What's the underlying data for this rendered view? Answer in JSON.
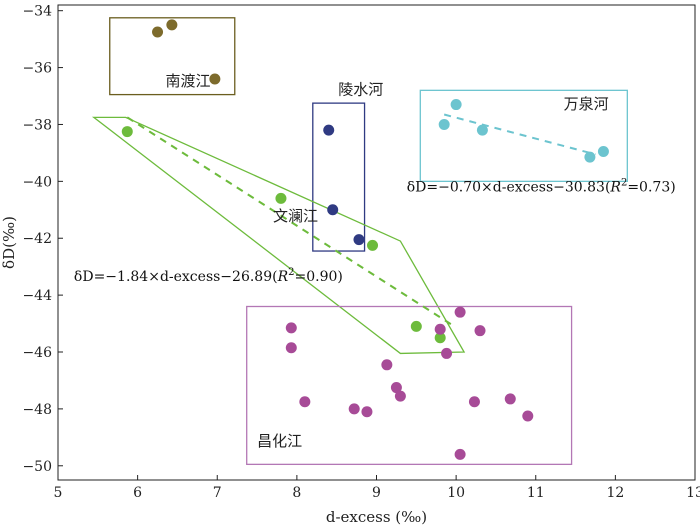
{
  "chart_data": {
    "type": "scatter",
    "xlabel": "d-excess (‰)",
    "ylabel": "δD(‰)",
    "xlim": [
      5,
      13
    ],
    "ylim": [
      -50.5,
      -33.8
    ],
    "x_ticks": [
      5,
      6,
      7,
      8,
      9,
      10,
      11,
      12,
      13
    ],
    "y_ticks": [
      -50,
      -48,
      -46,
      -44,
      -42,
      -40,
      -38,
      -36,
      -34
    ],
    "grid": false,
    "groups": [
      {
        "name": "南渡江",
        "color": "#7d6b2c",
        "box_color": "#6b5e1f",
        "points": [
          [
            6.25,
            -34.75
          ],
          [
            6.43,
            -34.5
          ],
          [
            6.97,
            -36.4
          ]
        ],
        "box": {
          "x": [
            5.65,
            7.22
          ],
          "y": [
            -36.95,
            -34.25
          ]
        },
        "label_at": [
          6.35,
          -36.65
        ]
      },
      {
        "name": "陵水河",
        "color": "#2f3a82",
        "box_color": "#2f3a82",
        "points": [
          [
            8.4,
            -38.2
          ],
          [
            8.45,
            -41.0
          ],
          [
            8.78,
            -42.05
          ]
        ],
        "box": {
          "x": [
            8.2,
            8.85
          ],
          "y": [
            -42.45,
            -37.25
          ]
        },
        "label_at": [
          8.52,
          -36.95
        ]
      },
      {
        "name": "万泉河",
        "color": "#6cc4cf",
        "box_color": "#6cc4cf",
        "points": [
          [
            10.0,
            -37.3
          ],
          [
            9.85,
            -38.0
          ],
          [
            10.33,
            -38.2
          ],
          [
            11.68,
            -39.15
          ],
          [
            11.85,
            -38.95
          ]
        ],
        "box": {
          "x": [
            9.55,
            12.15
          ],
          "y": [
            -40.0,
            -36.8
          ]
        },
        "label_at": [
          11.35,
          -37.45
        ],
        "trend": [
          [
            9.85,
            -37.65
          ],
          [
            11.75,
            -39.05
          ]
        ],
        "equation": {
          "prefix": "δD=−0.70×d-excess−30.83(",
          "r": "R",
          "sup": "2",
          "suffix": "=0.73)"
        },
        "equation_at": [
          9.38,
          -40.35
        ]
      },
      {
        "name": "文澜江",
        "color": "#6dbb3c",
        "box_color": "#6dbb3c",
        "points": [
          [
            5.87,
            -38.25
          ],
          [
            7.8,
            -40.6
          ],
          [
            8.95,
            -42.25
          ],
          [
            9.5,
            -45.1
          ],
          [
            9.8,
            -45.5
          ]
        ],
        "hull": [
          [
            5.45,
            -37.75
          ],
          [
            5.85,
            -37.75
          ],
          [
            9.3,
            -42.1
          ],
          [
            10.1,
            -46.0
          ],
          [
            9.3,
            -46.05
          ]
        ],
        "label_at": [
          7.7,
          -41.4
        ],
        "trend": [
          [
            5.87,
            -37.75
          ],
          [
            9.95,
            -45.05
          ]
        ],
        "equation": {
          "prefix": "δD=−1.84×d-excess−26.89(",
          "r": "R",
          "sup": "2",
          "suffix": "=0.90)"
        },
        "equation_at": [
          5.2,
          -43.5
        ]
      },
      {
        "name": "昌化江",
        "color": "#a74b97",
        "box_color": "#b377b5",
        "points": [
          [
            7.93,
            -45.15
          ],
          [
            7.93,
            -45.85
          ],
          [
            8.1,
            -47.75
          ],
          [
            8.72,
            -48.0
          ],
          [
            8.88,
            -48.1
          ],
          [
            9.13,
            -46.45
          ],
          [
            9.25,
            -47.25
          ],
          [
            9.3,
            -47.55
          ],
          [
            9.8,
            -45.2
          ],
          [
            9.88,
            -46.05
          ],
          [
            10.05,
            -44.6
          ],
          [
            10.05,
            -49.6
          ],
          [
            10.23,
            -47.75
          ],
          [
            10.3,
            -45.25
          ],
          [
            10.68,
            -47.65
          ],
          [
            10.9,
            -48.25
          ]
        ],
        "box": {
          "x": [
            7.37,
            11.45
          ],
          "y": [
            -49.95,
            -44.4
          ]
        },
        "label_at": [
          7.5,
          -49.3
        ]
      }
    ]
  }
}
